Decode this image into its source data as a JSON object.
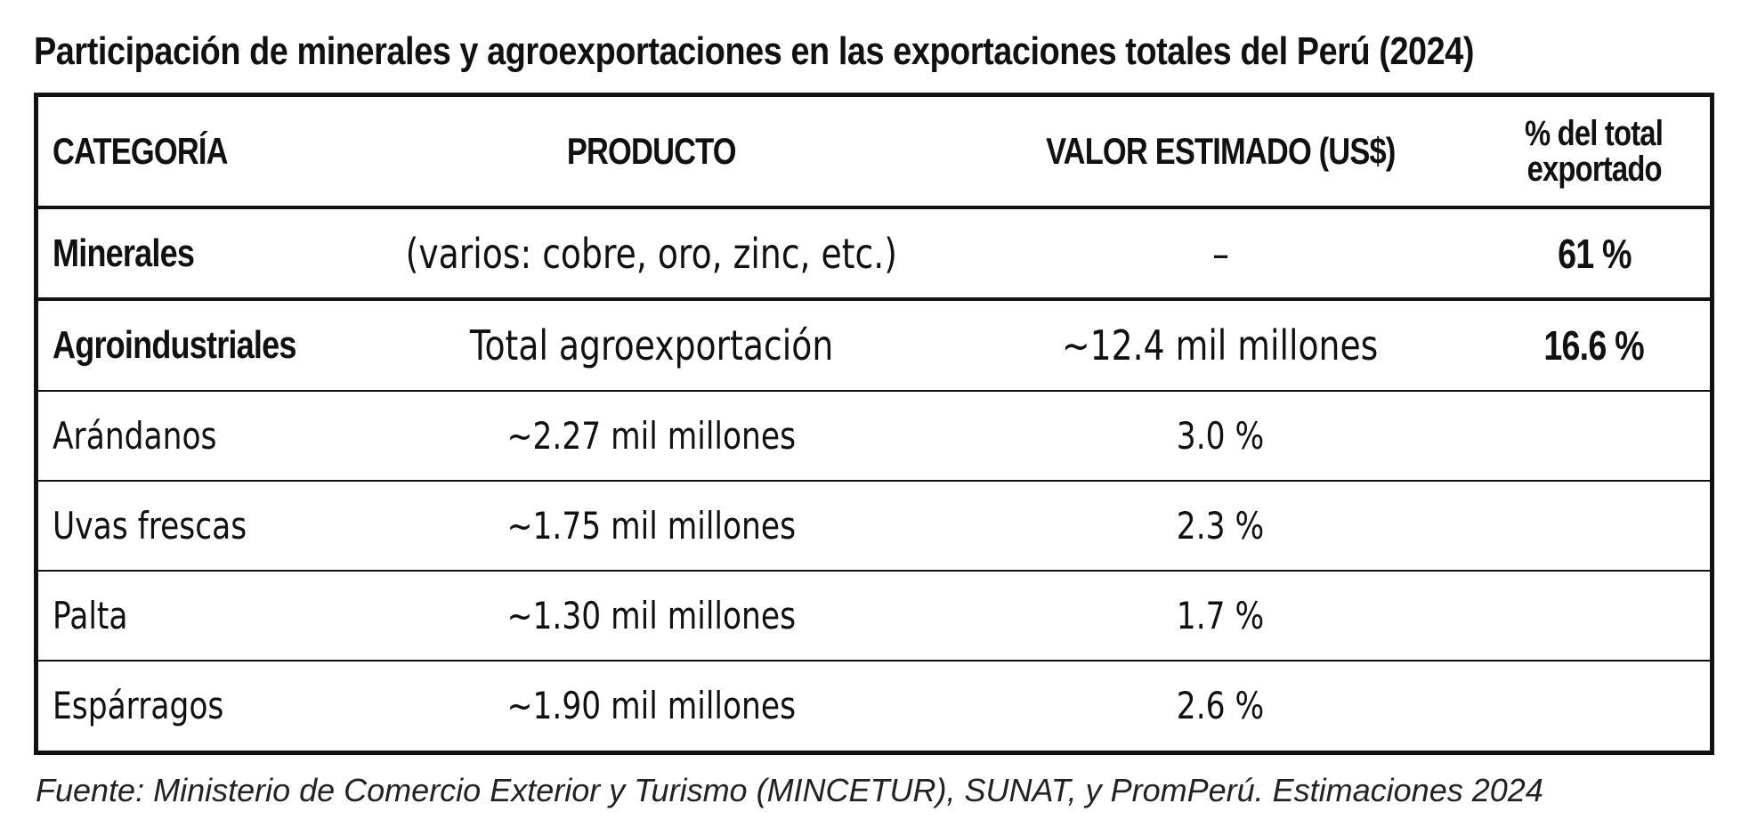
{
  "title": "Participación de minerales y agroexportaciones en las exportaciones totales del Perú (2024)",
  "table": {
    "headers": {
      "categoria": "CATEGORÍA",
      "producto": "PRODUCTO",
      "valor": "VALOR ESTIMADO (US$)",
      "porcentaje_line1": "% del total",
      "porcentaje_line2": "exportado"
    },
    "major_rows": [
      {
        "categoria": "Minerales",
        "producto": "(varios: cobre, oro, zinc, etc.)",
        "valor": "–",
        "porcentaje": "61 %"
      },
      {
        "categoria": "Agroindustriales",
        "producto": "Total agroexportación",
        "valor": "~12.4 mil millones",
        "porcentaje": "16.6 %"
      }
    ],
    "minor_rows": [
      {
        "categoria": "Arándanos",
        "producto": "~2.27 mil millones",
        "valor": "3.0 %",
        "porcentaje": ""
      },
      {
        "categoria": "Uvas frescas",
        "producto": "~1.75 mil millones",
        "valor": "2.3 %",
        "porcentaje": ""
      },
      {
        "categoria": "Palta",
        "producto": "~1.30 mil millones",
        "valor": "1.7 %",
        "porcentaje": ""
      },
      {
        "categoria": "Espárragos",
        "producto": "~1.90 mil millones",
        "valor": "2.6 %",
        "porcentaje": ""
      }
    ]
  },
  "footer": "Fuente: Ministerio de Comercio Exterior y Turismo (MINCETUR), SUNAT, y PromPerú. Estimaciones 2024",
  "colors": {
    "text": "#111111",
    "border": "#111111",
    "background": "#ffffff"
  }
}
